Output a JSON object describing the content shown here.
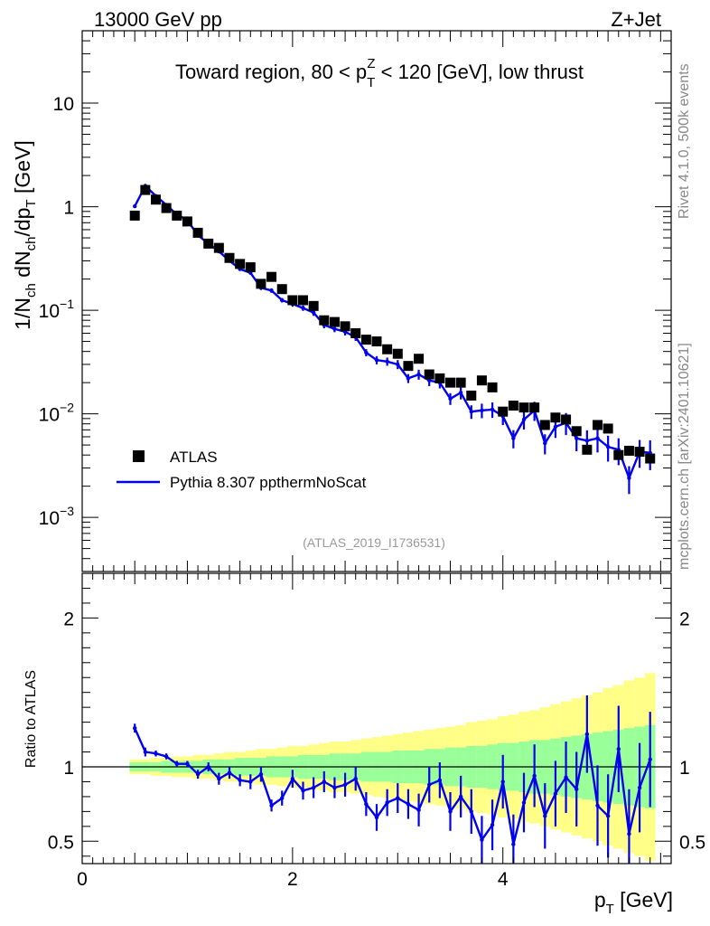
{
  "header": {
    "beam_label": "13000 GeV pp",
    "process_label": "Z+Jet",
    "rivet_label": "Rivet 4.1.0,  500k events",
    "site_label": "mcplots.cern.ch [arXiv:2401.10621]",
    "analysis_id": "(ATLAS_2019_I1736531)"
  },
  "chart_data": {
    "type": "scatter",
    "title": "Toward region, 80 < p_T^Z < 120 [GeV], low thrust",
    "xlabel": "p_T [GeV]",
    "ylabel": "1/N_ch dN_ch/dp_T [GeV]",
    "ratio_ylabel": "Ratio to ATLAS",
    "xlim": [
      0,
      5.6
    ],
    "ylim_log": [
      0.0003,
      50
    ],
    "ratio_ylim": [
      0.35,
      2.3
    ],
    "x_ticks": [
      "0",
      "2",
      "4"
    ],
    "y_ticks": [
      "10^-3",
      "10^-2",
      "10^-1",
      "1",
      "10"
    ],
    "ratio_ticks": [
      "0.5",
      "1",
      "2"
    ],
    "legend": [
      {
        "name": "ATLAS",
        "marker": "square",
        "color": "#000000"
      },
      {
        "name": "Pythia 8.307 ppthermNoScat",
        "marker": "line",
        "color": "#0000ee"
      }
    ],
    "x": [
      0.5,
      0.6,
      0.7,
      0.8,
      0.9,
      1.0,
      1.1,
      1.2,
      1.3,
      1.4,
      1.5,
      1.6,
      1.7,
      1.8,
      1.9,
      2.0,
      2.1,
      2.2,
      2.3,
      2.4,
      2.5,
      2.6,
      2.7,
      2.8,
      2.9,
      3.0,
      3.1,
      3.2,
      3.3,
      3.4,
      3.5,
      3.6,
      3.7,
      3.8,
      3.9,
      4.0,
      4.1,
      4.2,
      4.3,
      4.4,
      4.5,
      4.6,
      4.7,
      4.8,
      4.9,
      5.0,
      5.1,
      5.2,
      5.3,
      5.4
    ],
    "series": [
      {
        "name": "ATLAS",
        "values": [
          0.82,
          1.45,
          1.17,
          0.97,
          0.82,
          0.72,
          0.56,
          0.44,
          0.4,
          0.32,
          0.28,
          0.26,
          0.18,
          0.21,
          0.16,
          0.125,
          0.125,
          0.11,
          0.08,
          0.077,
          0.07,
          0.06,
          0.052,
          0.05,
          0.042,
          0.038,
          0.029,
          0.034,
          0.024,
          0.022,
          0.02,
          0.02,
          0.015,
          0.021,
          0.018,
          0.0105,
          0.012,
          0.0115,
          0.0115,
          0.0078,
          0.0092,
          0.0088,
          0.0068,
          0.0045,
          0.0078,
          0.0072,
          0.004,
          0.0044,
          0.0043,
          0.0037
        ]
      },
      {
        "name": "Pythia 8.307 ppthermNoScat",
        "values": [
          1.01,
          1.59,
          1.27,
          1.04,
          0.84,
          0.74,
          0.53,
          0.44,
          0.37,
          0.3,
          0.25,
          0.23,
          0.165,
          0.155,
          0.125,
          0.115,
          0.105,
          0.095,
          0.072,
          0.066,
          0.062,
          0.055,
          0.039,
          0.033,
          0.032,
          0.03,
          0.022,
          0.024,
          0.021,
          0.02,
          0.014,
          0.016,
          0.0105,
          0.0108,
          0.011,
          0.0095,
          0.0058,
          0.0088,
          0.0108,
          0.0052,
          0.0075,
          0.0082,
          0.0058,
          0.0055,
          0.0058,
          0.0048,
          0.0045,
          0.0024,
          0.0043,
          0.0042
        ],
        "errors_rel": [
          0.03,
          0.03,
          0.03,
          0.03,
          0.03,
          0.03,
          0.03,
          0.03,
          0.04,
          0.04,
          0.04,
          0.04,
          0.05,
          0.05,
          0.05,
          0.06,
          0.06,
          0.07,
          0.07,
          0.07,
          0.08,
          0.08,
          0.08,
          0.09,
          0.09,
          0.1,
          0.1,
          0.11,
          0.12,
          0.12,
          0.13,
          0.14,
          0.15,
          0.16,
          0.17,
          0.18,
          0.2,
          0.2,
          0.21,
          0.22,
          0.22,
          0.24,
          0.25,
          0.26,
          0.27,
          0.28,
          0.29,
          0.3,
          0.3,
          0.32
        ]
      }
    ],
    "ratio": {
      "values": [
        1.26,
        1.1,
        1.09,
        1.07,
        1.02,
        1.02,
        0.95,
        1.0,
        0.92,
        0.96,
        0.91,
        0.9,
        0.95,
        0.74,
        0.79,
        0.92,
        0.84,
        0.86,
        0.9,
        0.86,
        0.88,
        0.92,
        0.75,
        0.66,
        0.76,
        0.79,
        0.75,
        0.71,
        0.88,
        0.91,
        0.7,
        0.8,
        0.7,
        0.51,
        0.61,
        0.9,
        0.48,
        0.76,
        0.94,
        0.67,
        0.82,
        0.93,
        0.85,
        1.22,
        0.74,
        0.67,
        1.12,
        0.55,
        0.86,
        1.05
      ],
      "errors": [
        0.03,
        0.03,
        0.02,
        0.02,
        0.02,
        0.02,
        0.03,
        0.03,
        0.04,
        0.04,
        0.04,
        0.05,
        0.05,
        0.04,
        0.05,
        0.06,
        0.06,
        0.07,
        0.07,
        0.07,
        0.08,
        0.08,
        0.08,
        0.09,
        0.09,
        0.1,
        0.1,
        0.11,
        0.12,
        0.12,
        0.13,
        0.14,
        0.15,
        0.16,
        0.17,
        0.18,
        0.2,
        0.2,
        0.21,
        0.22,
        0.22,
        0.24,
        0.25,
        0.26,
        0.27,
        0.28,
        0.29,
        0.3,
        0.3,
        0.32
      ],
      "band_inner": [
        0.03,
        0.03,
        0.03,
        0.04,
        0.04,
        0.04,
        0.04,
        0.05,
        0.05,
        0.05,
        0.06,
        0.06,
        0.06,
        0.07,
        0.07,
        0.07,
        0.08,
        0.08,
        0.08,
        0.09,
        0.09,
        0.09,
        0.1,
        0.1,
        0.1,
        0.11,
        0.11,
        0.11,
        0.12,
        0.12,
        0.13,
        0.13,
        0.14,
        0.14,
        0.15,
        0.16,
        0.16,
        0.17,
        0.18,
        0.18,
        0.19,
        0.2,
        0.21,
        0.22,
        0.23,
        0.24,
        0.25,
        0.26,
        0.27,
        0.28
      ],
      "band_outer": [
        0.05,
        0.05,
        0.06,
        0.06,
        0.07,
        0.07,
        0.08,
        0.08,
        0.09,
        0.1,
        0.1,
        0.11,
        0.12,
        0.12,
        0.13,
        0.14,
        0.14,
        0.15,
        0.16,
        0.17,
        0.17,
        0.18,
        0.19,
        0.2,
        0.21,
        0.22,
        0.23,
        0.24,
        0.25,
        0.26,
        0.27,
        0.28,
        0.3,
        0.31,
        0.32,
        0.34,
        0.35,
        0.37,
        0.38,
        0.4,
        0.42,
        0.44,
        0.46,
        0.48,
        0.5,
        0.53,
        0.55,
        0.58,
        0.6,
        0.63
      ]
    }
  }
}
